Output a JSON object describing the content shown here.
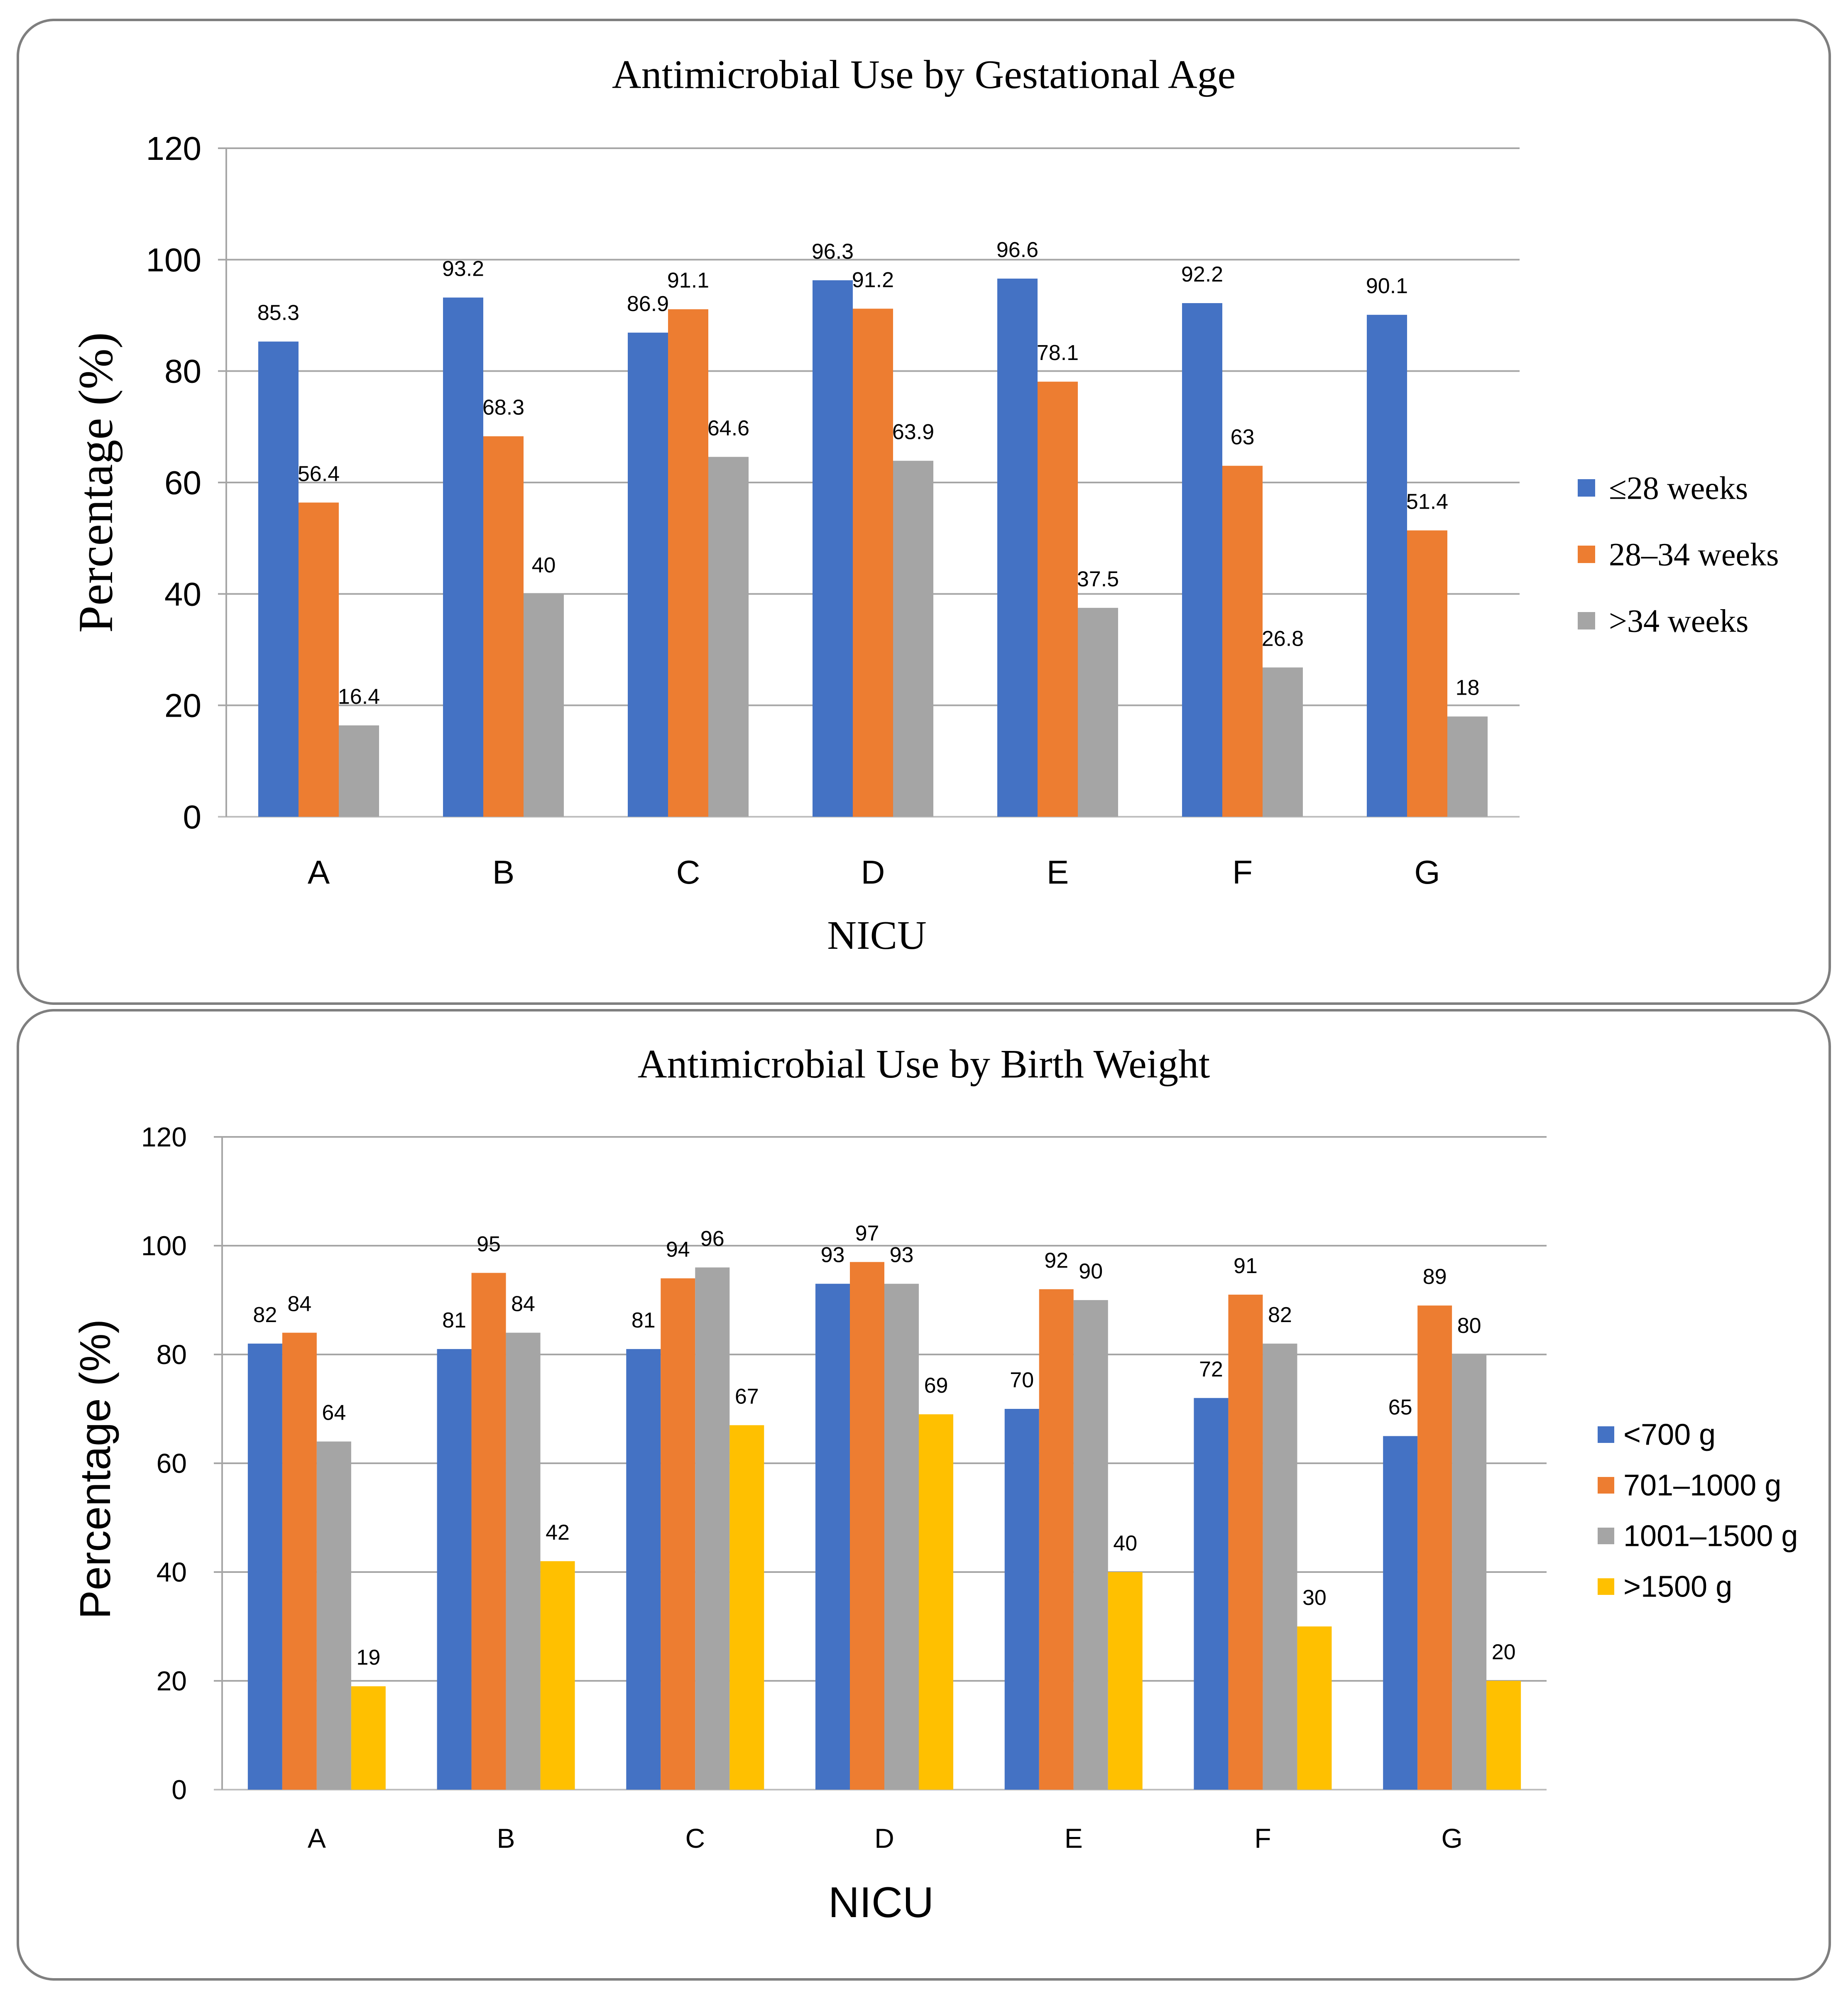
{
  "chart_data": [
    {
      "type": "bar",
      "title": "Antimicrobial Use by Gestational Age",
      "xlabel": "NICU",
      "ylabel": "Percentage (%)",
      "ylim": [
        0,
        120
      ],
      "yticks": [
        "0",
        "20",
        "40",
        "60",
        "80",
        "100",
        "120"
      ],
      "grid": true,
      "legend_position": "right",
      "categories": [
        "A",
        "B",
        "C",
        "D",
        "E",
        "F",
        "G"
      ],
      "series": [
        {
          "name": "≤28 weeks",
          "color": "#4472c4",
          "values": [
            85.3,
            93.2,
            86.9,
            96.3,
            96.6,
            92.2,
            90.1
          ]
        },
        {
          "name": "28–34 weeks",
          "color": "#ed7d31",
          "values": [
            56.4,
            68.3,
            91.1,
            91.2,
            78.1,
            63,
            51.4
          ]
        },
        {
          "name": ">34 weeks",
          "color": "#a5a5a5",
          "values": [
            16.4,
            40,
            64.6,
            63.9,
            37.5,
            26.8,
            18
          ]
        }
      ]
    },
    {
      "type": "bar",
      "title": "Antimicrobial Use by Birth Weight",
      "xlabel": "NICU",
      "ylabel": "Percentage (%)",
      "ylim": [
        0,
        120
      ],
      "yticks": [
        "0",
        "20",
        "40",
        "60",
        "80",
        "100",
        "120"
      ],
      "grid": true,
      "legend_position": "right",
      "categories": [
        "A",
        "B",
        "C",
        "D",
        "E",
        "F",
        "G"
      ],
      "series": [
        {
          "name": "<700 g",
          "color": "#4472c4",
          "values": [
            82,
            81,
            81,
            93,
            70,
            72,
            65
          ]
        },
        {
          "name": "701–1000 g",
          "color": "#ed7d31",
          "values": [
            84,
            95,
            94,
            97,
            92,
            91,
            89
          ]
        },
        {
          "name": "1001–1500 g",
          "color": "#a5a5a5",
          "values": [
            64,
            84,
            96,
            93,
            90,
            82,
            80
          ]
        },
        {
          "name": ">1500 g",
          "color": "#ffc000",
          "values": [
            19,
            42,
            67,
            69,
            40,
            30,
            20
          ]
        }
      ]
    }
  ]
}
